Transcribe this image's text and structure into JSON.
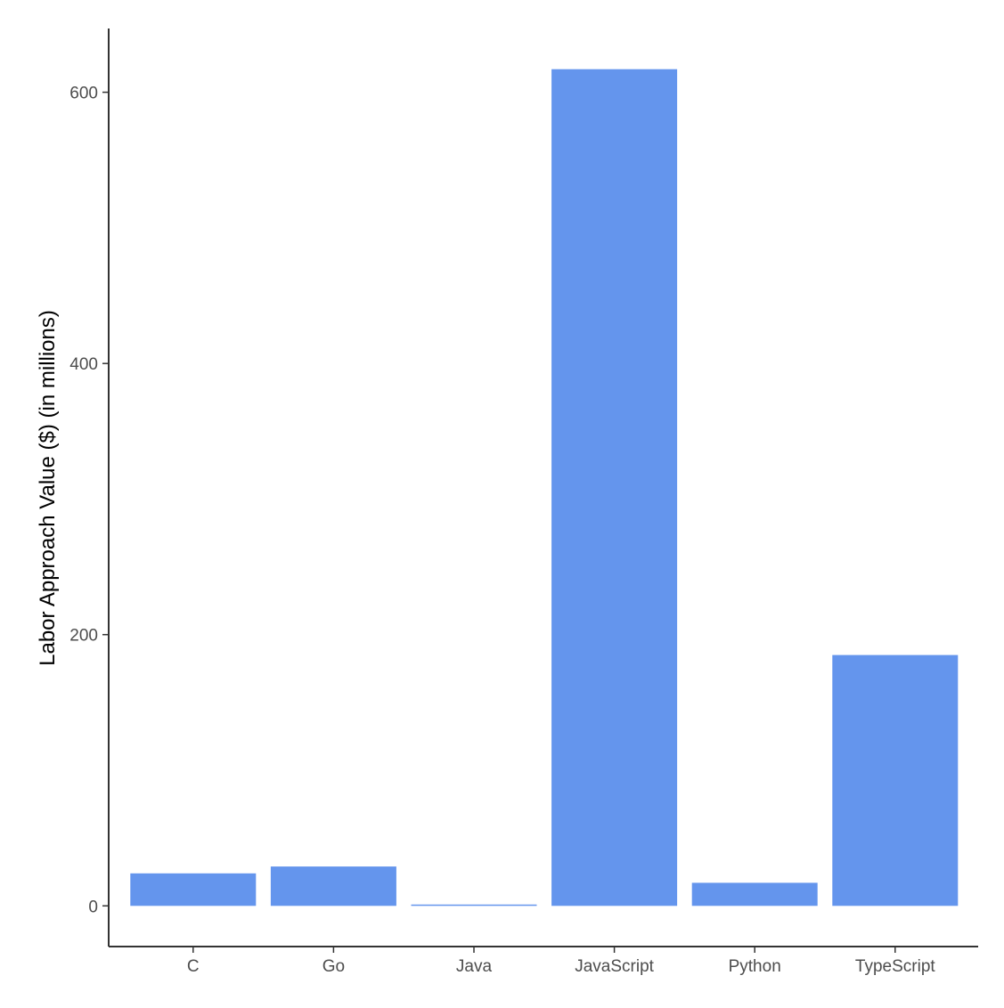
{
  "chart_data": {
    "type": "bar",
    "title": "",
    "xlabel": "",
    "ylabel": "Labor Approach Value ($) (in millions)",
    "categories": [
      "C",
      "Go",
      "Java",
      "JavaScript",
      "Python",
      "TypeScript"
    ],
    "values": [
      24,
      29,
      1,
      617,
      17,
      185
    ],
    "ylim": [
      -30,
      647
    ],
    "yticks": [
      0,
      200,
      400,
      600
    ],
    "ytick_labels": [
      "0",
      "200",
      "400",
      "600"
    ],
    "grid": false,
    "legend": "none",
    "colors": {
      "bar": "#6495ED",
      "axis": "#333333",
      "tick_text": "#4d4d4d",
      "title_text": "#000000"
    }
  }
}
